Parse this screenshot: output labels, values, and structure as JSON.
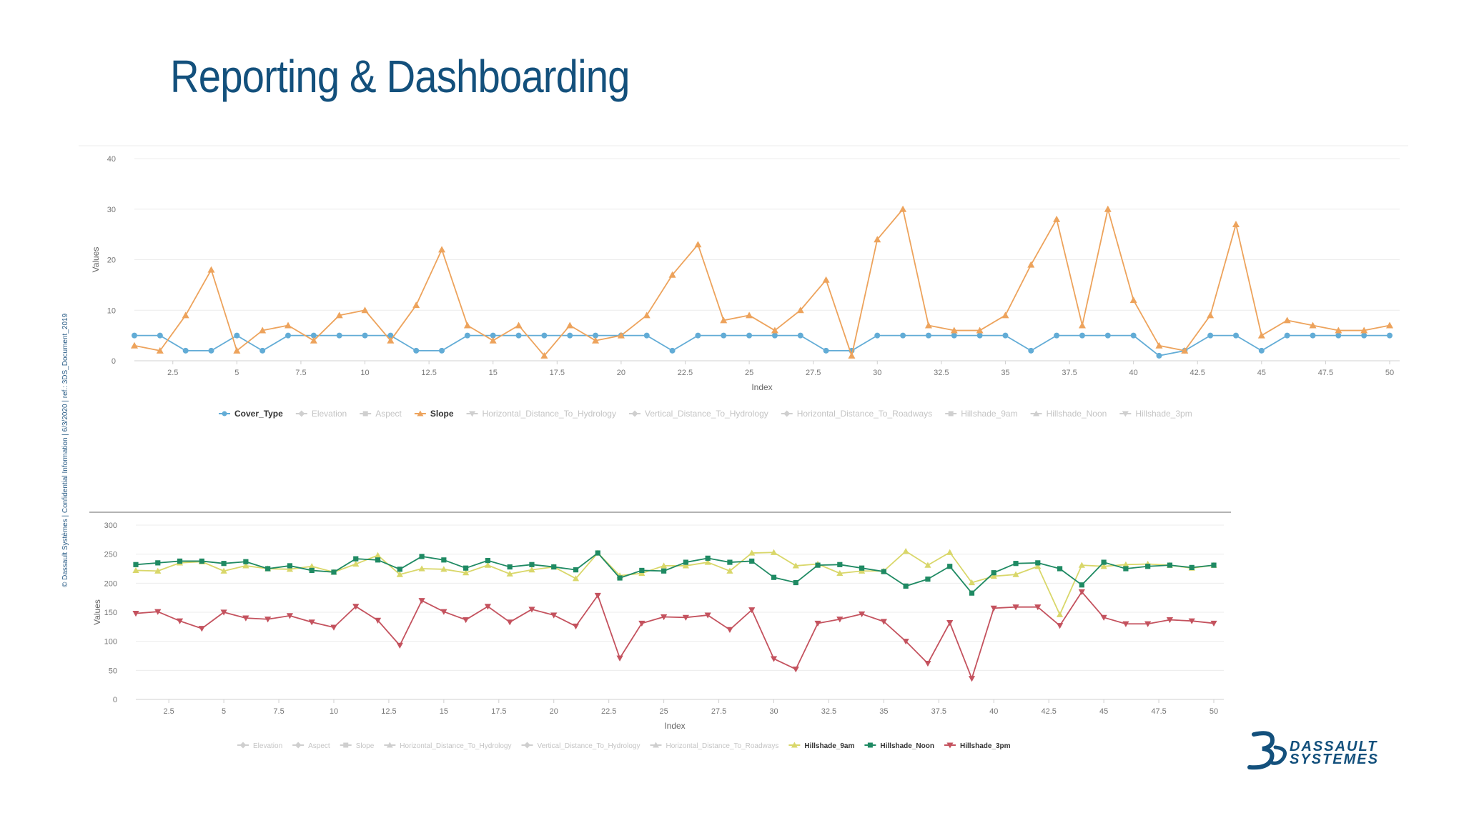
{
  "slide": {
    "title": "Reporting & Dashboarding",
    "side_note": "© Dassault Systèmes | Confidential Information | 6/3/2020 | ref.: 3DS_Document_2019"
  },
  "brand": {
    "line1": "DASSAULT",
    "line2": "SYSTEMES",
    "color": "#13507c"
  },
  "chart_data": [
    {
      "type": "line",
      "xlabel": "Index",
      "ylabel": "Values",
      "xlim": [
        1,
        50
      ],
      "ylim": [
        0,
        40
      ],
      "y_ticks": [
        "0",
        "10",
        "20",
        "30",
        "40"
      ],
      "x_ticks": [
        "2.5",
        "5",
        "7.5",
        "10",
        "12.5",
        "15",
        "17.5",
        "20",
        "22.5",
        "25",
        "27.5",
        "30",
        "32.5",
        "35",
        "37.5",
        "40",
        "42.5",
        "45",
        "47.5",
        "50"
      ],
      "grid": true,
      "legend_position": "bottom",
      "legend": [
        {
          "name": "Cover_Type",
          "active": true,
          "color": "#62acd6",
          "marker": "circle"
        },
        {
          "name": "Elevation",
          "active": false,
          "color": "#c9c9c9",
          "marker": "diamond"
        },
        {
          "name": "Aspect",
          "active": false,
          "color": "#c9c9c9",
          "marker": "square"
        },
        {
          "name": "Slope",
          "active": true,
          "color": "#eda35c",
          "marker": "triangle"
        },
        {
          "name": "Horizontal_Distance_To_Hydrology",
          "active": false,
          "color": "#c9c9c9",
          "marker": "triangle-down"
        },
        {
          "name": "Vertical_Distance_To_Hydrology",
          "active": false,
          "color": "#c9c9c9",
          "marker": "diamond"
        },
        {
          "name": "Horizontal_Distance_To_Roadways",
          "active": false,
          "color": "#c9c9c9",
          "marker": "diamond"
        },
        {
          "name": "Hillshade_9am",
          "active": false,
          "color": "#c9c9c9",
          "marker": "square"
        },
        {
          "name": "Hillshade_Noon",
          "active": false,
          "color": "#c9c9c9",
          "marker": "triangle"
        },
        {
          "name": "Hillshade_3pm",
          "active": false,
          "color": "#c9c9c9",
          "marker": "triangle-down"
        }
      ],
      "x": [
        1,
        2,
        3,
        4,
        5,
        6,
        7,
        8,
        9,
        10,
        11,
        12,
        13,
        14,
        15,
        16,
        17,
        18,
        19,
        20,
        21,
        22,
        23,
        24,
        25,
        26,
        27,
        28,
        29,
        30,
        31,
        32,
        33,
        34,
        35,
        36,
        37,
        38,
        39,
        40,
        41,
        42,
        43,
        44,
        45,
        46,
        47,
        48,
        49,
        50
      ],
      "series": [
        {
          "name": "Cover_Type",
          "color": "#62acd6",
          "marker": "circle",
          "values": [
            5,
            5,
            2,
            2,
            5,
            2,
            5,
            5,
            5,
            5,
            5,
            2,
            2,
            5,
            5,
            5,
            5,
            5,
            5,
            5,
            5,
            2,
            5,
            5,
            5,
            5,
            5,
            2,
            2,
            5,
            5,
            5,
            5,
            5,
            5,
            2,
            5,
            5,
            5,
            5,
            1,
            2,
            5,
            5,
            2,
            5,
            5,
            5,
            5,
            5
          ]
        },
        {
          "name": "Slope",
          "color": "#eda35c",
          "marker": "triangle",
          "values": [
            3,
            2,
            9,
            18,
            2,
            6,
            7,
            4,
            9,
            10,
            4,
            11,
            22,
            7,
            4,
            7,
            1,
            7,
            4,
            5,
            9,
            17,
            23,
            8,
            9,
            6,
            10,
            16,
            1,
            24,
            30,
            7,
            6,
            6,
            9,
            19,
            28,
            7,
            30,
            12,
            3,
            2,
            9,
            27,
            5,
            8,
            7,
            6,
            6,
            7
          ]
        }
      ]
    },
    {
      "type": "line",
      "xlabel": "Index",
      "ylabel": "Values",
      "xlim": [
        1,
        50
      ],
      "ylim": [
        0,
        300
      ],
      "y_ticks": [
        "0",
        "50",
        "100",
        "150",
        "200",
        "250",
        "300"
      ],
      "x_ticks": [
        "2.5",
        "5",
        "7.5",
        "10",
        "12.5",
        "15",
        "17.5",
        "20",
        "22.5",
        "25",
        "27.5",
        "30",
        "32.5",
        "35",
        "37.5",
        "40",
        "42.5",
        "45",
        "47.5",
        "50"
      ],
      "grid": true,
      "legend_position": "bottom",
      "legend": [
        {
          "name": "Elevation",
          "active": false,
          "color": "#c9c9c9",
          "marker": "diamond"
        },
        {
          "name": "Aspect",
          "active": false,
          "color": "#c9c9c9",
          "marker": "diamond"
        },
        {
          "name": "Slope",
          "active": false,
          "color": "#c9c9c9",
          "marker": "square"
        },
        {
          "name": "Horizontal_Distance_To_Hydrology",
          "active": false,
          "color": "#c9c9c9",
          "marker": "triangle"
        },
        {
          "name": "Vertical_Distance_To_Hydrology",
          "active": false,
          "color": "#c9c9c9",
          "marker": "diamond"
        },
        {
          "name": "Horizontal_Distance_To_Roadways",
          "active": false,
          "color": "#c9c9c9",
          "marker": "triangle"
        },
        {
          "name": "Hillshade_9am",
          "active": true,
          "color": "#d9d76a",
          "marker": "triangle"
        },
        {
          "name": "Hillshade_Noon",
          "active": true,
          "color": "#1f8a63",
          "marker": "square"
        },
        {
          "name": "Hillshade_3pm",
          "active": true,
          "color": "#c4525e",
          "marker": "triangle-down"
        }
      ],
      "x": [
        1,
        2,
        3,
        4,
        5,
        6,
        7,
        8,
        9,
        10,
        11,
        12,
        13,
        14,
        15,
        16,
        17,
        18,
        19,
        20,
        21,
        22,
        23,
        24,
        25,
        26,
        27,
        28,
        29,
        30,
        31,
        32,
        33,
        34,
        35,
        36,
        37,
        38,
        39,
        40,
        41,
        42,
        43,
        44,
        45,
        46,
        47,
        48,
        49,
        50
      ],
      "series": [
        {
          "name": "Hillshade_9am",
          "color": "#d9d76a",
          "marker": "triangle",
          "values": [
            222,
            221,
            235,
            237,
            221,
            230,
            225,
            224,
            229,
            219,
            233,
            248,
            215,
            225,
            224,
            218,
            231,
            216,
            223,
            228,
            208,
            252,
            213,
            217,
            230,
            230,
            236,
            221,
            252,
            253,
            230,
            233,
            217,
            221,
            221,
            255,
            231,
            253,
            201,
            212,
            215,
            229,
            146,
            231,
            229,
            232,
            233,
            231,
            226,
            231
          ]
        },
        {
          "name": "Hillshade_Noon",
          "color": "#1f8a63",
          "marker": "square",
          "values": [
            232,
            235,
            238,
            238,
            234,
            237,
            225,
            230,
            222,
            219,
            242,
            240,
            224,
            246,
            240,
            226,
            239,
            228,
            232,
            228,
            223,
            252,
            209,
            222,
            221,
            236,
            243,
            236,
            238,
            210,
            201,
            231,
            232,
            226,
            220,
            195,
            207,
            229,
            183,
            218,
            234,
            235,
            225,
            197,
            236,
            225,
            229,
            231,
            227,
            231
          ]
        },
        {
          "name": "Hillshade_3pm",
          "color": "#c4525e",
          "marker": "triangle-down",
          "values": [
            148,
            151,
            135,
            122,
            150,
            140,
            138,
            144,
            133,
            124,
            160,
            136,
            93,
            170,
            151,
            137,
            160,
            133,
            155,
            145,
            126,
            179,
            71,
            131,
            142,
            141,
            145,
            120,
            154,
            70,
            52,
            131,
            138,
            147,
            134,
            100,
            62,
            132,
            36,
            157,
            159,
            159,
            127,
            185,
            141,
            130,
            130,
            137,
            135,
            131
          ]
        }
      ]
    }
  ]
}
